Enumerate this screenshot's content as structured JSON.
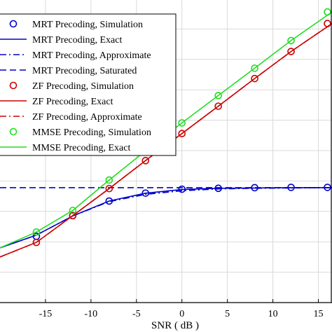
{
  "chart_data": {
    "type": "line",
    "xlabel": "SNR ( dB )",
    "ylabel": "",
    "title": "",
    "xlim": [
      -20,
      16.5
    ],
    "ylim": [
      0,
      1
    ],
    "x_ticks": [
      -15,
      -10,
      -5,
      0,
      5,
      10,
      15
    ],
    "grid": true,
    "legend_position": "top-left",
    "series": [
      {
        "name": "MRT Precoding, Simulation",
        "style": "marker",
        "marker": "circle",
        "color": "#0000cc",
        "x": [
          -16,
          -12,
          -8,
          -4,
          0,
          4,
          8,
          12,
          16
        ],
        "y": [
          0.218,
          0.286,
          0.334,
          0.36,
          0.373,
          0.376,
          0.378,
          0.379,
          0.379
        ]
      },
      {
        "name": "MRT Precoding, Exact",
        "style": "solid",
        "color": "#0000cc",
        "x": [
          -20,
          -16,
          -12,
          -8,
          -4,
          0,
          4,
          8,
          12,
          16.5
        ],
        "y": [
          0.18,
          0.222,
          0.285,
          0.334,
          0.36,
          0.372,
          0.376,
          0.377,
          0.378,
          0.378
        ]
      },
      {
        "name": "MRT Precoding, Approximate",
        "style": "dashdot",
        "color": "#0000cc",
        "x": [
          -20,
          -16,
          -12,
          -8,
          -4,
          0,
          4,
          8,
          12,
          16.5
        ],
        "y": [
          0.18,
          0.222,
          0.285,
          0.332,
          0.356,
          0.368,
          0.374,
          0.376,
          0.377,
          0.378
        ]
      },
      {
        "name": "MRT Precoding, Saturated",
        "style": "dashed",
        "color": "#0000cc",
        "x": [
          -20,
          16.5
        ],
        "y": [
          0.378,
          0.378
        ]
      },
      {
        "name": "ZF Precoding, Simulation",
        "style": "marker",
        "marker": "circle",
        "color": "#cc0000",
        "x": [
          -16,
          -12,
          -8,
          -4,
          0,
          4,
          8,
          12,
          16
        ],
        "y": [
          0.198,
          0.286,
          0.375,
          0.467,
          0.556,
          0.646,
          0.737,
          0.826,
          0.918
        ]
      },
      {
        "name": "ZF Precoding, Exact",
        "style": "solid",
        "color": "#cc0000",
        "x": [
          -20,
          -16,
          -12,
          -8,
          -4,
          0,
          4,
          8,
          12,
          16.5
        ],
        "y": [
          0.15,
          0.198,
          0.286,
          0.375,
          0.467,
          0.556,
          0.646,
          0.737,
          0.826,
          0.918
        ]
      },
      {
        "name": "ZF Precoding, Approximate",
        "style": "dashdot",
        "color": "#cc0000",
        "x": [
          -20,
          -16,
          -12,
          -8,
          -4,
          0,
          4,
          8,
          12,
          16.5
        ],
        "y": [
          0.15,
          0.198,
          0.286,
          0.375,
          0.467,
          0.556,
          0.646,
          0.737,
          0.826,
          0.918
        ]
      },
      {
        "name": "MMSE Precoding, Simulation",
        "style": "marker",
        "marker": "circle",
        "color": "#22dd22",
        "x": [
          -16,
          -12,
          -8,
          -4,
          0,
          4,
          8,
          12,
          16
        ],
        "y": [
          0.232,
          0.303,
          0.403,
          0.499,
          0.591,
          0.681,
          0.771,
          0.862,
          0.956
        ]
      },
      {
        "name": "MMSE Precoding, Exact",
        "style": "solid",
        "color": "#22dd22",
        "x": [
          -20,
          -16,
          -12,
          -8,
          -4,
          0,
          4,
          8,
          12,
          16.5
        ],
        "y": [
          0.18,
          0.232,
          0.303,
          0.403,
          0.499,
          0.591,
          0.681,
          0.771,
          0.862,
          0.956
        ]
      }
    ]
  }
}
